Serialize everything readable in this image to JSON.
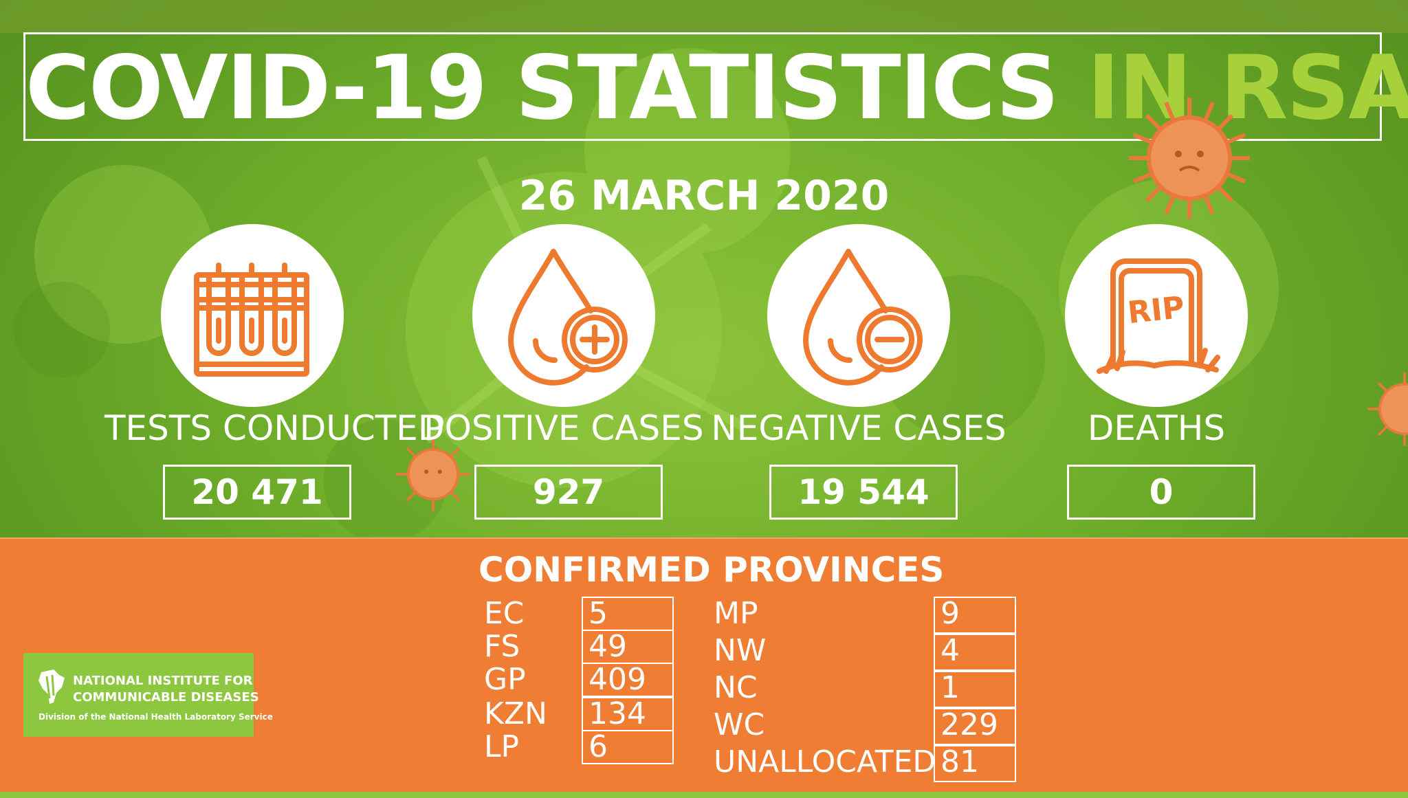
{
  "title": {
    "main": "COVID-19 STATISTICS ",
    "accent": "IN RSA"
  },
  "date": "26 MARCH 2020",
  "stats": [
    {
      "label": "TESTS CONDUCTED",
      "value": "20 471",
      "icon": "test-tubes-icon"
    },
    {
      "label": "POSITIVE CASES",
      "value": "927",
      "icon": "blood-drop-plus-icon"
    },
    {
      "label": "NEGATIVE CASES",
      "value": "19 544",
      "icon": "blood-drop-minus-icon"
    },
    {
      "label": "DEATHS",
      "value": "0",
      "icon": "rip-tombstone-icon"
    }
  ],
  "tombstone_text": "RIP",
  "provinces": {
    "title": "CONFIRMED PROVINCES",
    "left": [
      {
        "name": "EC",
        "value": "5"
      },
      {
        "name": "FS",
        "value": "49"
      },
      {
        "name": "GP",
        "value": "409"
      },
      {
        "name": "KZN",
        "value": "134"
      },
      {
        "name": "LP",
        "value": "6"
      }
    ],
    "right": [
      {
        "name": "MP",
        "value": "9"
      },
      {
        "name": "NW",
        "value": "4"
      },
      {
        "name": "NC",
        "value": "1"
      },
      {
        "name": "WC",
        "value": "229"
      },
      {
        "name": "UNALLOCATED",
        "value": "81"
      }
    ]
  },
  "logo": {
    "line1": "NATIONAL INSTITUTE FOR",
    "line2": "COMMUNICABLE DISEASES",
    "line3": "Division of the National Health Laboratory Service"
  },
  "colors": {
    "orange": "#ef7d33",
    "green": "#6fae2a",
    "accent_green": "#a6d13a",
    "icon_orange": "#ee7a2f"
  }
}
